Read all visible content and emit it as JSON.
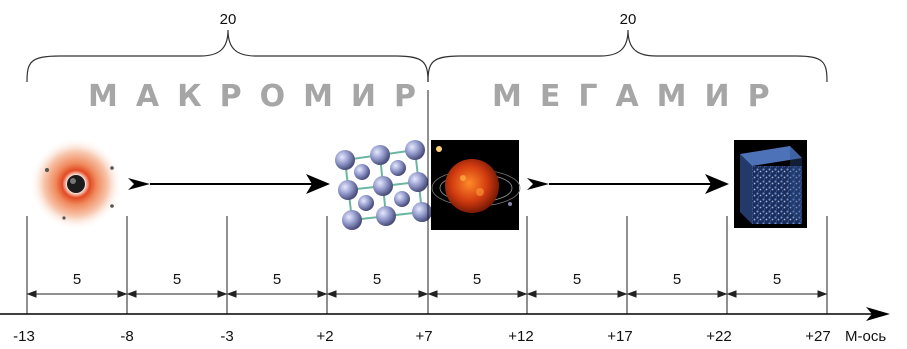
{
  "brace_values": [
    "20",
    "20"
  ],
  "regions": [
    "МАКРОМИР",
    "МЕГАМИР"
  ],
  "interval_values": [
    "5",
    "5",
    "5",
    "5",
    "5",
    "5",
    "5",
    "5"
  ],
  "axis_ticks": [
    "-13",
    "-8",
    "-3",
    "+2",
    "+7",
    "+12",
    "+17",
    "+22",
    "+27"
  ],
  "axis_label": "М-ось",
  "colors": {
    "region_text": "#a6a6a6",
    "atom_ring": "#e8784a",
    "sun": "#d9461a",
    "space": "#000000",
    "cube": "#3a5a9a",
    "molecule": "#8f96c8"
  },
  "icons": [
    "atom-image",
    "crystal-lattice-image",
    "solar-system-image",
    "universe-cube-image"
  ]
}
